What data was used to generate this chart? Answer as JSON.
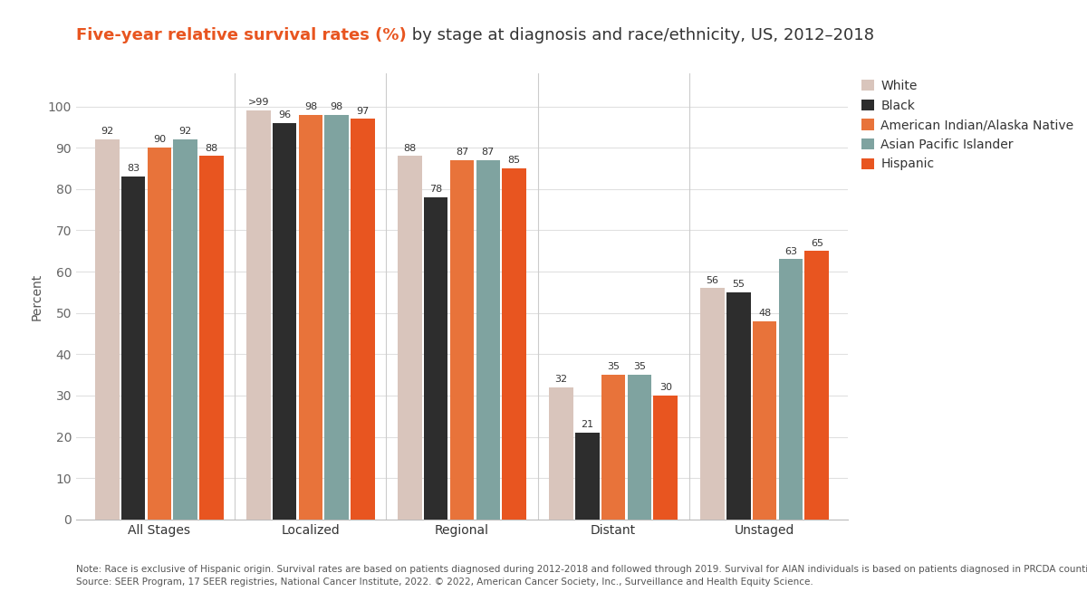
{
  "title_bold": "Five-year relative survival rates (%)",
  "title_regular": " by stage at diagnosis and race/ethnicity, US, 2012–2018",
  "ylabel": "Percent",
  "categories": [
    "All Stages",
    "Localized",
    "Regional",
    "Distant",
    "Unstaged"
  ],
  "series": [
    {
      "name": "White",
      "color": "#d9c5bc",
      "values": [
        92,
        99,
        88,
        32,
        56
      ]
    },
    {
      "name": "Black",
      "color": "#2d2d2d",
      "values": [
        83,
        96,
        78,
        21,
        55
      ]
    },
    {
      "name": "American Indian/Alaska Native",
      "color": "#e8733a",
      "values": [
        90,
        98,
        87,
        35,
        48
      ]
    },
    {
      "name": "Asian Pacific Islander",
      "color": "#7fa3a0",
      "values": [
        92,
        98,
        87,
        35,
        63
      ]
    },
    {
      "name": "Hispanic",
      "color": "#e85520",
      "values": [
        88,
        97,
        85,
        30,
        65
      ]
    }
  ],
  "bar_labels": [
    [
      "92",
      "83",
      "90",
      "92",
      "88"
    ],
    [
      ">99",
      "96",
      "98",
      "98",
      "97"
    ],
    [
      "88",
      "78",
      "87",
      "87",
      "85"
    ],
    [
      "32",
      "21",
      "35",
      "35",
      "30"
    ],
    [
      "56",
      "55",
      "48",
      "63",
      "65"
    ]
  ],
  "ylim": [
    0,
    108
  ],
  "yticks": [
    0,
    10,
    20,
    30,
    40,
    50,
    60,
    70,
    80,
    90,
    100
  ],
  "note_line1": "Note: Race is exclusive of Hispanic origin. Survival rates are based on patients diagnosed during 2012-2018 and followed through 2019. Survival for AIAN individuals is based on patients diagnosed in PRCDA counties.",
  "note_line2": "Source: SEER Program, 17 SEER registries, National Cancer Institute, 2022. © 2022, American Cancer Society, Inc., Surveillance and Health Equity Science.",
  "title_color": "#e85520",
  "background_color": "#ffffff",
  "bar_width": 0.16,
  "label_fontsize": 8.0,
  "axis_label_fontsize": 10,
  "legend_fontsize": 10
}
